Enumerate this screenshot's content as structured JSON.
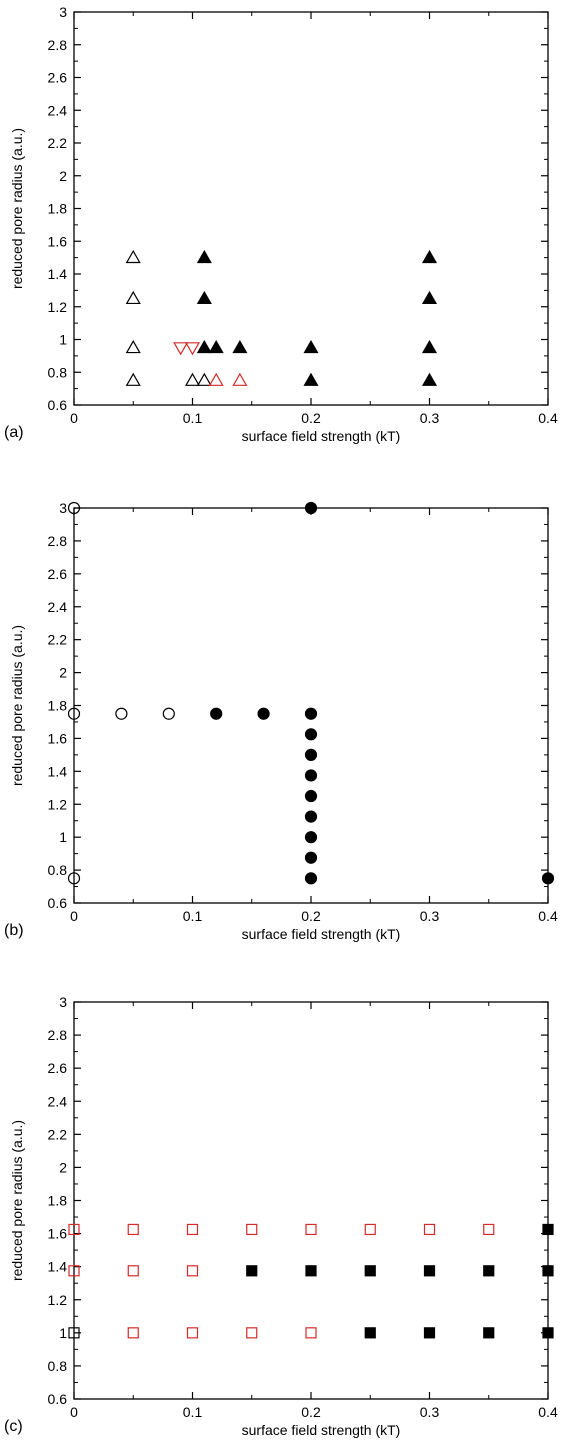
{
  "colors": {
    "black": "#000000",
    "red": "#d42a2a"
  },
  "chart_data": [
    {
      "type": "scatter",
      "panel_label": "(a)",
      "xlabel": "surface field strength (kT)",
      "ylabel": "reduced pore radius (a.u.)",
      "xlim": [
        0,
        0.4
      ],
      "ylim": [
        0.6,
        3
      ],
      "xticks": [
        0,
        0.1,
        0.2,
        0.3,
        0.4
      ],
      "xtick_labels": [
        "0",
        "0.1",
        "0.2",
        "0.3",
        "0.4"
      ],
      "yticks": [
        0.6,
        0.8,
        1,
        1.2,
        1.4,
        1.6,
        1.8,
        2,
        2.2,
        2.4,
        2.6,
        2.8,
        3
      ],
      "ytick_labels": [
        "0.6",
        "0.8",
        "1",
        "1.2",
        "1.4",
        "1.6",
        "1.8",
        "2",
        "2.2",
        "2.4",
        "2.6",
        "2.8",
        "3"
      ],
      "grid": false,
      "series": [
        {
          "marker": "triangle-up",
          "filled": false,
          "color": "#000000",
          "points": [
            [
              0.05,
              1.5
            ],
            [
              0.05,
              1.25
            ],
            [
              0.05,
              0.95
            ],
            [
              0.05,
              0.75
            ],
            [
              0.1,
              0.75
            ],
            [
              0.11,
              0.75
            ]
          ]
        },
        {
          "marker": "triangle-up",
          "filled": false,
          "color": "#d42a2a",
          "points": [
            [
              0.12,
              0.75
            ],
            [
              0.14,
              0.75
            ]
          ]
        },
        {
          "marker": "triangle-down",
          "filled": false,
          "color": "#d42a2a",
          "points": [
            [
              0.09,
              0.95
            ],
            [
              0.1,
              0.95
            ]
          ]
        },
        {
          "marker": "triangle-up",
          "filled": true,
          "color": "#000000",
          "points": [
            [
              0.11,
              1.5
            ],
            [
              0.11,
              1.25
            ],
            [
              0.11,
              0.95
            ],
            [
              0.12,
              0.95
            ],
            [
              0.14,
              0.95
            ],
            [
              0.2,
              0.95
            ],
            [
              0.2,
              0.75
            ],
            [
              0.3,
              1.5
            ],
            [
              0.3,
              1.25
            ],
            [
              0.3,
              0.95
            ],
            [
              0.3,
              0.75
            ]
          ]
        }
      ]
    },
    {
      "type": "scatter",
      "panel_label": "(b)",
      "xlabel": "surface field strength (kT)",
      "ylabel": "reduced pore radius (a.u.)",
      "xlim": [
        0,
        0.4
      ],
      "ylim": [
        0.6,
        3
      ],
      "xticks": [
        0,
        0.1,
        0.2,
        0.3,
        0.4
      ],
      "xtick_labels": [
        "0",
        "0.1",
        "0.2",
        "0.3",
        "0.4"
      ],
      "yticks": [
        0.6,
        0.8,
        1,
        1.2,
        1.4,
        1.6,
        1.8,
        2,
        2.2,
        2.4,
        2.6,
        2.8,
        3
      ],
      "ytick_labels": [
        "0.6",
        "0.8",
        "1",
        "1.2",
        "1.4",
        "1.6",
        "1.8",
        "2",
        "2.2",
        "2.4",
        "2.6",
        "2.8",
        "3"
      ],
      "grid": false,
      "series": [
        {
          "marker": "circle",
          "filled": false,
          "color": "#000000",
          "points": [
            [
              0,
              3
            ],
            [
              0,
              1.75
            ],
            [
              0.04,
              1.75
            ],
            [
              0.08,
              1.75
            ],
            [
              0,
              0.75
            ]
          ]
        },
        {
          "marker": "circle",
          "filled": true,
          "color": "#000000",
          "points": [
            [
              0.2,
              3
            ],
            [
              0.12,
              1.75
            ],
            [
              0.16,
              1.75
            ],
            [
              0.2,
              1.75
            ],
            [
              0.2,
              1.625
            ],
            [
              0.2,
              1.5
            ],
            [
              0.2,
              1.375
            ],
            [
              0.2,
              1.25
            ],
            [
              0.2,
              1.125
            ],
            [
              0.2,
              1
            ],
            [
              0.2,
              0.875
            ],
            [
              0.2,
              0.75
            ],
            [
              0.4,
              0.75
            ]
          ]
        }
      ]
    },
    {
      "type": "scatter",
      "panel_label": "(c)",
      "xlabel": "surface field strength (kT)",
      "ylabel": "reduced pore radius (a.u.)",
      "xlim": [
        0,
        0.4
      ],
      "ylim": [
        0.6,
        3
      ],
      "xticks": [
        0,
        0.1,
        0.2,
        0.3,
        0.4
      ],
      "xtick_labels": [
        "0",
        "0.1",
        "0.2",
        "0.3",
        "0.4"
      ],
      "yticks": [
        0.6,
        0.8,
        1,
        1.2,
        1.4,
        1.6,
        1.8,
        2,
        2.2,
        2.4,
        2.6,
        2.8,
        3
      ],
      "ytick_labels": [
        "0.6",
        "0.8",
        "1",
        "1.2",
        "1.4",
        "1.6",
        "1.8",
        "2",
        "2.2",
        "2.4",
        "2.6",
        "2.8",
        "3"
      ],
      "grid": false,
      "series": [
        {
          "marker": "square",
          "filled": false,
          "color": "#000000",
          "points": [
            [
              0,
              1
            ]
          ]
        },
        {
          "marker": "square",
          "filled": false,
          "color": "#d42a2a",
          "points": [
            [
              0,
              1.625
            ],
            [
              0.05,
              1.625
            ],
            [
              0.1,
              1.625
            ],
            [
              0.15,
              1.625
            ],
            [
              0.2,
              1.625
            ],
            [
              0.25,
              1.625
            ],
            [
              0.3,
              1.625
            ],
            [
              0.35,
              1.625
            ],
            [
              0,
              1.375
            ],
            [
              0.05,
              1.375
            ],
            [
              0.1,
              1.375
            ],
            [
              0.05,
              1
            ],
            [
              0.1,
              1
            ],
            [
              0.15,
              1
            ],
            [
              0.2,
              1
            ]
          ]
        },
        {
          "marker": "square",
          "filled": true,
          "color": "#000000",
          "points": [
            [
              0.4,
              1.625
            ],
            [
              0.15,
              1.375
            ],
            [
              0.2,
              1.375
            ],
            [
              0.25,
              1.375
            ],
            [
              0.3,
              1.375
            ],
            [
              0.35,
              1.375
            ],
            [
              0.4,
              1.375
            ],
            [
              0.25,
              1
            ],
            [
              0.3,
              1
            ],
            [
              0.35,
              1
            ],
            [
              0.4,
              1
            ]
          ]
        }
      ]
    }
  ]
}
